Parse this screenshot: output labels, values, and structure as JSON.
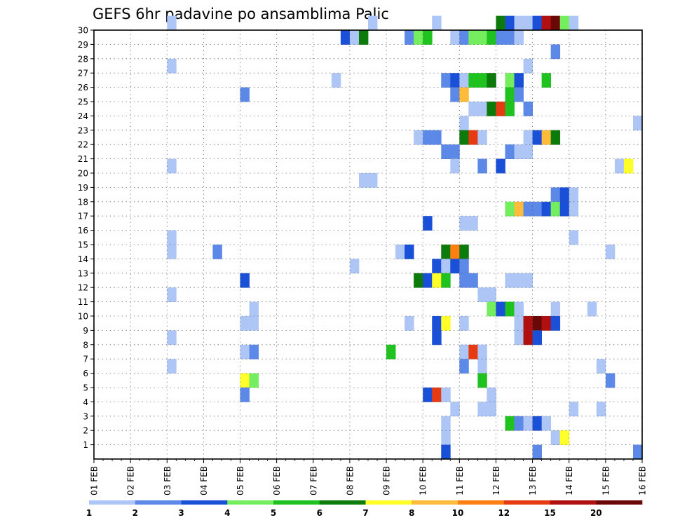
{
  "chart_data": {
    "type": "heatmap",
    "title": "GEFS 6hr padavine po ansamblima Palic",
    "x_tick_labels": [
      "01 FEB",
      "02 FEB",
      "03 FEB",
      "04 FEB",
      "05 FEB",
      "06 FEB",
      "07 FEB",
      "08 FEB",
      "09 FEB",
      "10 FEB",
      "11 FEB",
      "12 FEB",
      "13 FEB",
      "14 FEB",
      "15 FEB",
      "16 FEB"
    ],
    "y_tick_labels": [
      "1",
      "2",
      "3",
      "4",
      "5",
      "6",
      "7",
      "8",
      "9",
      "10",
      "11",
      "12",
      "13",
      "14",
      "15",
      "16",
      "17",
      "18",
      "19",
      "20",
      "21",
      "22",
      "23",
      "24",
      "25",
      "26",
      "27",
      "28",
      "29",
      "30"
    ],
    "x_steps_per_day": 4,
    "x_range_steps": [
      0,
      60
    ],
    "y_range": [
      0,
      30
    ],
    "grid": true,
    "colorbar": {
      "labels": [
        "1",
        "2",
        "3",
        "4",
        "5",
        "6",
        "7",
        "8",
        "10",
        "12",
        "15",
        "20"
      ],
      "colors": [
        "#aec6f6",
        "#5c88e8",
        "#1a4fd8",
        "#74ee5e",
        "#1fc21f",
        "#0c7b0c",
        "#ffff2a",
        "#ffbb3a",
        "#ff7f12",
        "#e53a12",
        "#b01010",
        "#6a0808"
      ]
    },
    "cells": [
      [
        30,
        8,
        0
      ],
      [
        30,
        30,
        0
      ],
      [
        30,
        37,
        0
      ],
      [
        30,
        44,
        5
      ],
      [
        30,
        45,
        2
      ],
      [
        30,
        46,
        0
      ],
      [
        30,
        47,
        0
      ],
      [
        30,
        48,
        2
      ],
      [
        30,
        49,
        10
      ],
      [
        30,
        50,
        11
      ],
      [
        30,
        51,
        3
      ],
      [
        30,
        52,
        0
      ],
      [
        29,
        27,
        2
      ],
      [
        29,
        28,
        0
      ],
      [
        29,
        29,
        5
      ],
      [
        29,
        34,
        1
      ],
      [
        29,
        35,
        3
      ],
      [
        29,
        36,
        4
      ],
      [
        29,
        39,
        0
      ],
      [
        29,
        40,
        1
      ],
      [
        29,
        41,
        3
      ],
      [
        29,
        42,
        3
      ],
      [
        29,
        43,
        4
      ],
      [
        29,
        44,
        1
      ],
      [
        29,
        45,
        1
      ],
      [
        29,
        46,
        0
      ],
      [
        28,
        50,
        1
      ],
      [
        27,
        8,
        0
      ],
      [
        27,
        47,
        0
      ],
      [
        26,
        26,
        0
      ],
      [
        26,
        38,
        1
      ],
      [
        26,
        39,
        2
      ],
      [
        26,
        40,
        0
      ],
      [
        26,
        41,
        4
      ],
      [
        26,
        42,
        4
      ],
      [
        26,
        43,
        5
      ],
      [
        26,
        45,
        3
      ],
      [
        26,
        46,
        2
      ],
      [
        26,
        49,
        4
      ],
      [
        25,
        16,
        1
      ],
      [
        25,
        39,
        1
      ],
      [
        25,
        40,
        7
      ],
      [
        25,
        45,
        4
      ],
      [
        25,
        46,
        1
      ],
      [
        24,
        41,
        0
      ],
      [
        24,
        42,
        0
      ],
      [
        24,
        43,
        5
      ],
      [
        24,
        44,
        9
      ],
      [
        24,
        45,
        4
      ],
      [
        24,
        47,
        1
      ],
      [
        23,
        40,
        0
      ],
      [
        23,
        59,
        0
      ],
      [
        22,
        35,
        0
      ],
      [
        22,
        36,
        1
      ],
      [
        22,
        37,
        1
      ],
      [
        22,
        40,
        5
      ],
      [
        22,
        41,
        9
      ],
      [
        22,
        42,
        0
      ],
      [
        22,
        47,
        0
      ],
      [
        22,
        48,
        2
      ],
      [
        22,
        49,
        7
      ],
      [
        22,
        50,
        5
      ],
      [
        21,
        38,
        1
      ],
      [
        21,
        39,
        1
      ],
      [
        21,
        45,
        1
      ],
      [
        21,
        46,
        0
      ],
      [
        21,
        47,
        0
      ],
      [
        20,
        8,
        0
      ],
      [
        20,
        39,
        0
      ],
      [
        20,
        42,
        1
      ],
      [
        20,
        44,
        2
      ],
      [
        20,
        57,
        0
      ],
      [
        20,
        58,
        6
      ],
      [
        19,
        29,
        0
      ],
      [
        19,
        30,
        0
      ],
      [
        18,
        50,
        1
      ],
      [
        18,
        51,
        2
      ],
      [
        18,
        52,
        0
      ],
      [
        17,
        45,
        3
      ],
      [
        17,
        46,
        7
      ],
      [
        17,
        47,
        1
      ],
      [
        17,
        48,
        1
      ],
      [
        17,
        49,
        2
      ],
      [
        17,
        50,
        3
      ],
      [
        17,
        51,
        2
      ],
      [
        17,
        52,
        0
      ],
      [
        16,
        36,
        2
      ],
      [
        16,
        40,
        0
      ],
      [
        16,
        41,
        0
      ],
      [
        15,
        8,
        0
      ],
      [
        15,
        52,
        0
      ],
      [
        14,
        8,
        0
      ],
      [
        14,
        13,
        1
      ],
      [
        14,
        33,
        0
      ],
      [
        14,
        34,
        2
      ],
      [
        14,
        38,
        5
      ],
      [
        14,
        39,
        8
      ],
      [
        14,
        40,
        5
      ],
      [
        14,
        56,
        0
      ],
      [
        13,
        28,
        0
      ],
      [
        13,
        37,
        2
      ],
      [
        13,
        38,
        0
      ],
      [
        13,
        39,
        2
      ],
      [
        13,
        40,
        1
      ],
      [
        12,
        16,
        2
      ],
      [
        12,
        35,
        5
      ],
      [
        12,
        36,
        2
      ],
      [
        12,
        37,
        6
      ],
      [
        12,
        38,
        4
      ],
      [
        12,
        40,
        1
      ],
      [
        12,
        41,
        1
      ],
      [
        12,
        45,
        0
      ],
      [
        12,
        46,
        0
      ],
      [
        12,
        47,
        0
      ],
      [
        11,
        8,
        0
      ],
      [
        11,
        42,
        0
      ],
      [
        11,
        43,
        0
      ],
      [
        10,
        17,
        0
      ],
      [
        10,
        43,
        3
      ],
      [
        10,
        44,
        2
      ],
      [
        10,
        45,
        4
      ],
      [
        10,
        46,
        0
      ],
      [
        10,
        50,
        0
      ],
      [
        10,
        54,
        0
      ],
      [
        9,
        16,
        0
      ],
      [
        9,
        17,
        0
      ],
      [
        9,
        34,
        0
      ],
      [
        9,
        37,
        2
      ],
      [
        9,
        38,
        6
      ],
      [
        9,
        40,
        0
      ],
      [
        9,
        46,
        0
      ],
      [
        9,
        47,
        10
      ],
      [
        9,
        48,
        11
      ],
      [
        9,
        49,
        10
      ],
      [
        9,
        50,
        2
      ],
      [
        8,
        8,
        0
      ],
      [
        8,
        37,
        2
      ],
      [
        8,
        46,
        0
      ],
      [
        8,
        47,
        10
      ],
      [
        8,
        48,
        2
      ],
      [
        7,
        16,
        0
      ],
      [
        7,
        17,
        1
      ],
      [
        7,
        32,
        4
      ],
      [
        7,
        40,
        0
      ],
      [
        7,
        41,
        9
      ],
      [
        7,
        42,
        0
      ],
      [
        6,
        8,
        0
      ],
      [
        6,
        40,
        1
      ],
      [
        6,
        42,
        0
      ],
      [
        6,
        55,
        0
      ],
      [
        5,
        16,
        6
      ],
      [
        5,
        17,
        3
      ],
      [
        5,
        42,
        4
      ],
      [
        5,
        56,
        1
      ],
      [
        4,
        16,
        1
      ],
      [
        4,
        36,
        2
      ],
      [
        4,
        37,
        9
      ],
      [
        4,
        38,
        0
      ],
      [
        4,
        43,
        0
      ],
      [
        3,
        39,
        0
      ],
      [
        3,
        42,
        0
      ],
      [
        3,
        43,
        0
      ],
      [
        3,
        52,
        0
      ],
      [
        3,
        55,
        0
      ],
      [
        2,
        38,
        0
      ],
      [
        2,
        45,
        4
      ],
      [
        2,
        46,
        1
      ],
      [
        2,
        47,
        0
      ],
      [
        2,
        48,
        2
      ],
      [
        2,
        49,
        0
      ],
      [
        1,
        38,
        0
      ],
      [
        1,
        50,
        0
      ],
      [
        1,
        51,
        6
      ],
      [
        0,
        38,
        2
      ],
      [
        0,
        48,
        1
      ],
      [
        0,
        59,
        1
      ]
    ]
  }
}
